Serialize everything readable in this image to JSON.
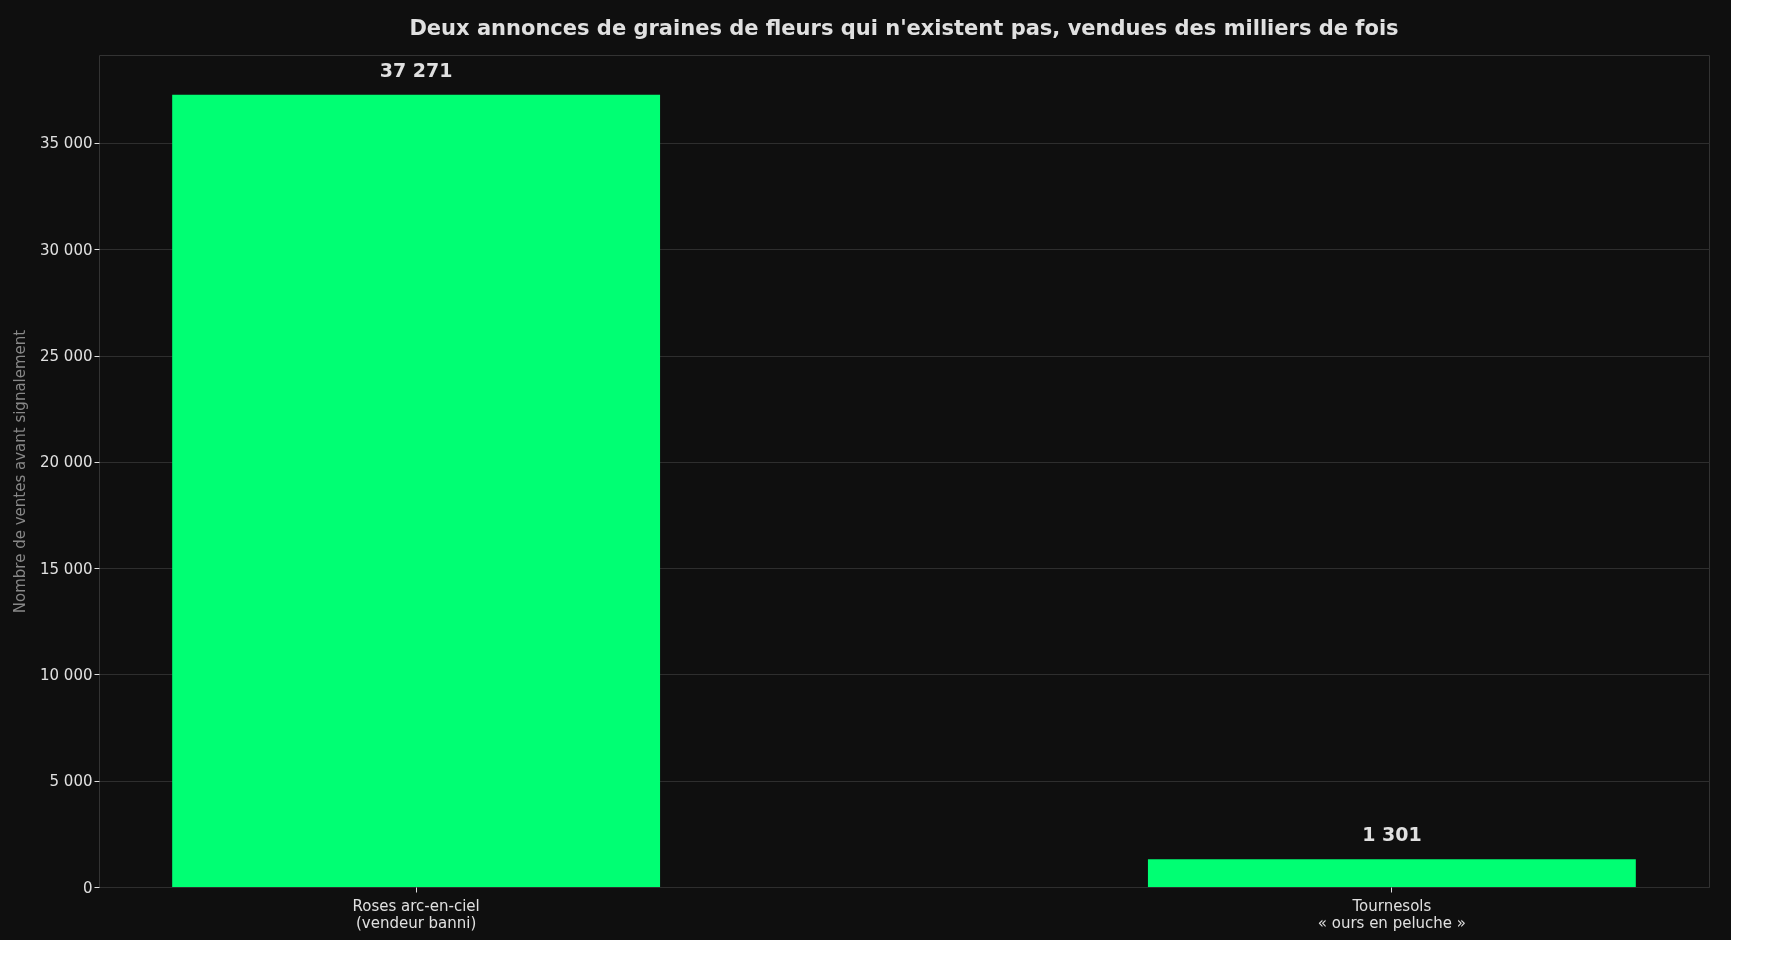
{
  "chart_data": {
    "type": "bar",
    "title": "Deux annonces de graines de fleurs qui n'existent pas, vendues des milliers de fois",
    "ylabel": "Nombre de ventes avant signalement",
    "categories": [
      "Roses arc-en-ciel\n(vendeur banni)",
      "Tournesols\n« ours en peluche »"
    ],
    "values": [
      37271,
      1301
    ],
    "value_labels": [
      "37 271",
      "1 301"
    ],
    "color": "#00ff73",
    "ylim": [
      0,
      39135
    ],
    "yticks": [
      0,
      {
        "value": 5000,
        "label": "5 000"
      },
      {
        "value": 10000,
        "label": "10 000"
      },
      {
        "value": 15000,
        "label": "15 000"
      },
      {
        "value": 20000,
        "label": "20 000"
      },
      {
        "value": 25000,
        "label": "25 000"
      },
      {
        "value": 30000,
        "label": "30 000"
      },
      {
        "value": 35000,
        "label": "35 000"
      }
    ],
    "grid": "y"
  }
}
